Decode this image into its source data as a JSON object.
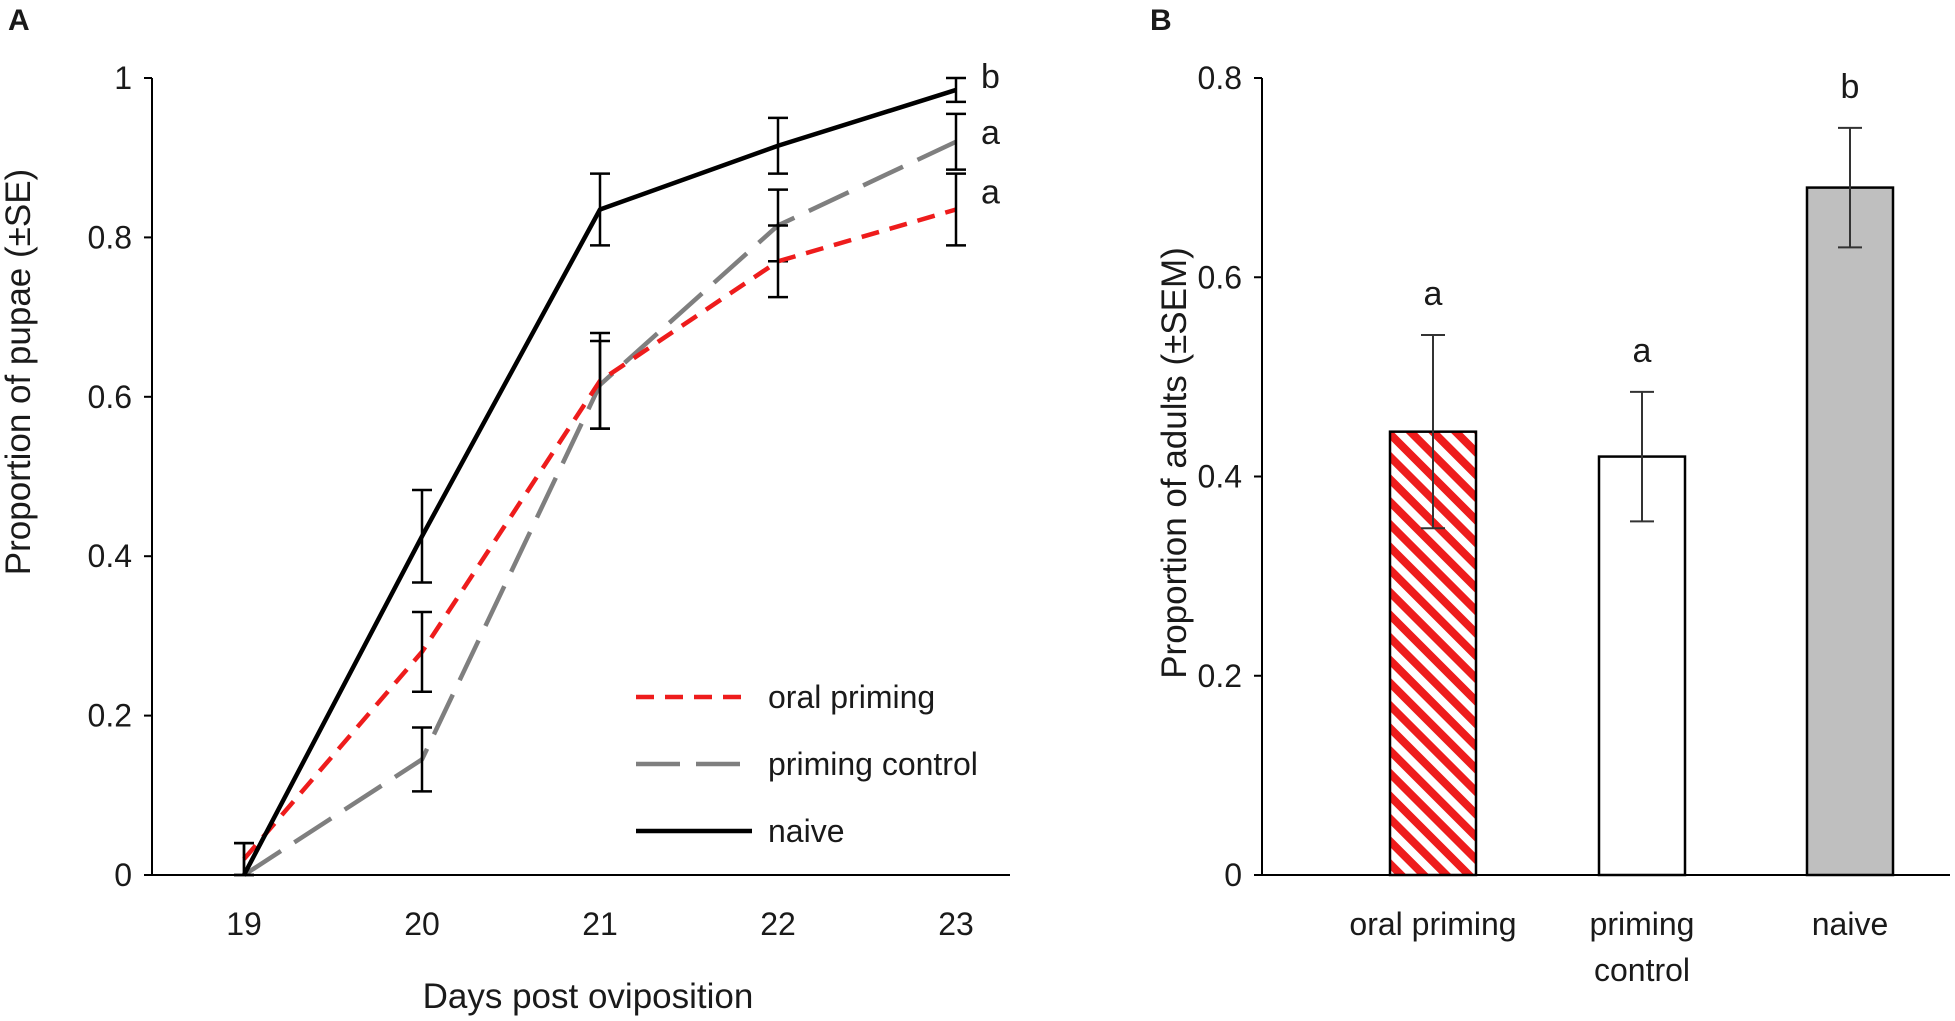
{
  "chart_data": [
    {
      "panel": "A",
      "type": "line",
      "title": "",
      "xlabel": "Days post oviposition",
      "ylabel": "Proportion of pupae (±SE)",
      "x": [
        19,
        20,
        21,
        22,
        23
      ],
      "x_tick_labels": [
        "19",
        "20",
        "21",
        "22",
        "23"
      ],
      "y_ticks": [
        0,
        0.2,
        0.4,
        0.6,
        0.8,
        1
      ],
      "y_tick_labels": [
        "0",
        "0.2",
        "0.4",
        "0.6",
        "0.8",
        "1"
      ],
      "ylim": [
        0,
        1
      ],
      "series": [
        {
          "name": "oral priming",
          "color": "#ee1c1c",
          "dash": "short",
          "values": [
            0.02,
            0.28,
            0.62,
            0.77,
            0.835
          ],
          "err": [
            0.02,
            0.05,
            0.06,
            0.045,
            0.045
          ],
          "sig": "a"
        },
        {
          "name": "priming control",
          "color": "#7f7f7f",
          "dash": "long",
          "values": [
            0.0,
            0.145,
            0.615,
            0.815,
            0.92
          ],
          "err": [
            0.0,
            0.04,
            0.055,
            0.045,
            0.035
          ],
          "sig": "a"
        },
        {
          "name": "naive",
          "color": "#000000",
          "dash": "solid",
          "values": [
            0.0,
            0.425,
            0.835,
            0.915,
            0.985
          ],
          "err": [
            0.04,
            0.058,
            0.045,
            0.035,
            0.015
          ],
          "sig": "b"
        }
      ],
      "legend": [
        "oral priming",
        "priming control",
        "naive"
      ],
      "legend_position": "bottom-right"
    },
    {
      "panel": "B",
      "type": "bar",
      "title": "",
      "xlabel": "",
      "ylabel": "Proportion of adults (±SEM)",
      "categories": [
        "oral priming",
        "priming control",
        "naive"
      ],
      "category_label_lines": [
        [
          "oral priming"
        ],
        [
          "priming",
          "control"
        ],
        [
          "naive"
        ]
      ],
      "values": [
        0.445,
        0.42,
        0.69
      ],
      "err": [
        0.097,
        0.065,
        0.06
      ],
      "sig": [
        "a",
        "a",
        "b"
      ],
      "fills": [
        "hatch-red",
        "#ffffff",
        "#bfbfbf"
      ],
      "y_ticks": [
        0,
        0.2,
        0.4,
        0.6,
        0.8
      ],
      "y_tick_labels": [
        "0",
        "0.2",
        "0.4",
        "0.6",
        "0.8"
      ],
      "ylim": [
        0,
        0.8
      ]
    }
  ]
}
